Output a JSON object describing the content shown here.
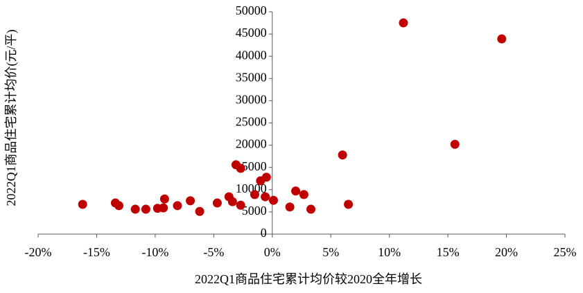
{
  "chart_data": {
    "type": "scatter",
    "x_label": "2022Q1商品住宅累计均价较2020全年增长",
    "y_label": "2022Q1商品住宅累计均价(元/平)",
    "color": "#c00000",
    "x": [
      -16.2,
      -13.4,
      -13.1,
      -11.7,
      -10.8,
      -9.8,
      -9.3,
      -9.2,
      -8.1,
      -7.0,
      -6.2,
      -4.7,
      -3.7,
      -3.4,
      -3.1,
      -2.7,
      -2.7,
      -1.5,
      -1.0,
      -0.5,
      -0.6,
      0.1,
      1.5,
      2.0,
      2.7,
      3.3,
      6.0,
      6.5,
      11.2,
      15.6,
      19.6
    ],
    "values": [
      6700,
      7000,
      6400,
      5600,
      5600,
      5800,
      5900,
      7900,
      6400,
      7500,
      5100,
      7000,
      8400,
      7300,
      15600,
      14800,
      6500,
      8900,
      12000,
      12800,
      8400,
      7600,
      6100,
      9700,
      8900,
      5600,
      17800,
      6700,
      47500,
      20200,
      43900
    ],
    "xlim": [
      -20,
      25
    ],
    "xticks": [
      {
        "value": -20,
        "label": "-20%"
      },
      {
        "value": -15,
        "label": "-15%"
      },
      {
        "value": -10,
        "label": "-10%"
      },
      {
        "value": -5,
        "label": "-5%"
      },
      {
        "value": 0,
        "label": "0%"
      },
      {
        "value": 5,
        "label": "5%"
      },
      {
        "value": 10,
        "label": "10%"
      },
      {
        "value": 15,
        "label": "15%"
      },
      {
        "value": 20,
        "label": "20%"
      },
      {
        "value": 25,
        "label": "25%"
      }
    ],
    "ylim": [
      0,
      50000
    ],
    "yticks": [
      0,
      5000,
      10000,
      15000,
      20000,
      25000,
      30000,
      35000,
      40000,
      45000,
      50000
    ]
  }
}
